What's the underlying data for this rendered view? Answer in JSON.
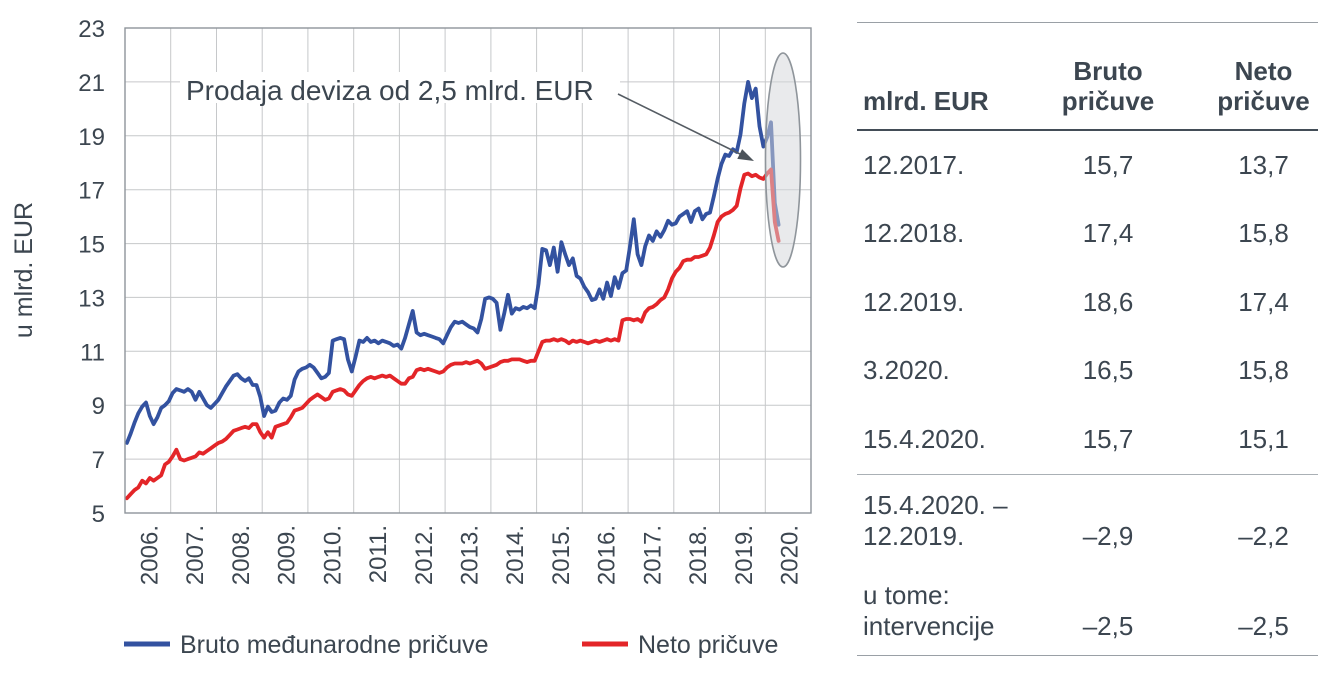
{
  "chart": {
    "ylabel": "u mlrd. EUR",
    "annotation_text": "Prodaja deviza od 2,5 mlrd. EUR"
  },
  "chart_data": {
    "type": "line",
    "title": "",
    "xlabel": "",
    "ylabel": "u mlrd. EUR",
    "ylim": [
      5,
      23
    ],
    "xlim": [
      2006,
      2021
    ],
    "grid": true,
    "legend_position": "bottom",
    "yticks": [
      5,
      7,
      9,
      11,
      13,
      15,
      17,
      19,
      21,
      23
    ],
    "xtick_labels": [
      "2006.",
      "2007.",
      "2008.",
      "2009.",
      "2010.",
      "2011.",
      "2012.",
      "2013.",
      "2014.",
      "2015.",
      "2016.",
      "2017.",
      "2018.",
      "2019.",
      "2020."
    ],
    "x_start": 2006,
    "x_interval": "monthly",
    "x_final": 2020.2917,
    "x_final_label": "15.4.2020.",
    "annotation": {
      "text": "Prodaja deviza od 2,5 mlrd. EUR",
      "points_to": "pad pričuva u ožujku i travnju 2020."
    },
    "highlight_ellipse": {
      "x_center": 2020.15,
      "y_center": 15.9,
      "note": "istaknuto razdoblje intervencija 2020."
    },
    "series": [
      {
        "name": "Bruto međunarodne pričuve",
        "color": "#3352a0",
        "values": [
          7.6,
          7.95,
          8.35,
          8.7,
          8.95,
          9.1,
          8.6,
          8.3,
          8.55,
          8.9,
          9.0,
          9.15,
          9.45,
          9.6,
          9.55,
          9.5,
          9.6,
          9.5,
          9.2,
          9.5,
          9.25,
          9.0,
          8.9,
          9.05,
          9.2,
          9.45,
          9.7,
          9.9,
          10.1,
          10.15,
          10.0,
          9.9,
          10.0,
          9.75,
          9.75,
          9.3,
          8.6,
          8.95,
          8.75,
          8.8,
          9.1,
          9.25,
          9.2,
          9.35,
          9.95,
          10.25,
          10.35,
          10.4,
          10.5,
          10.4,
          10.2,
          10.0,
          10.05,
          10.2,
          11.4,
          11.45,
          11.5,
          11.45,
          10.7,
          10.25,
          10.8,
          11.4,
          11.35,
          11.5,
          11.35,
          11.4,
          11.3,
          11.4,
          11.35,
          11.3,
          11.2,
          11.25,
          11.1,
          11.5,
          12.0,
          12.5,
          11.7,
          11.6,
          11.65,
          11.6,
          11.55,
          11.5,
          11.45,
          11.3,
          11.6,
          11.9,
          12.1,
          12.05,
          12.1,
          12.0,
          11.9,
          11.85,
          11.7,
          12.2,
          12.95,
          13.0,
          12.95,
          12.8,
          11.8,
          12.4,
          13.1,
          12.4,
          12.6,
          12.55,
          12.65,
          12.6,
          12.7,
          12.6,
          13.5,
          14.8,
          14.75,
          14.2,
          14.85,
          13.95,
          15.05,
          14.6,
          14.2,
          14.45,
          13.8,
          13.7,
          13.4,
          13.2,
          12.9,
          12.95,
          13.3,
          12.95,
          13.55,
          13.05,
          13.75,
          13.35,
          13.9,
          14.0,
          14.9,
          15.9,
          14.6,
          14.2,
          14.9,
          15.3,
          15.1,
          15.45,
          15.25,
          15.5,
          15.85,
          15.7,
          15.75,
          16.0,
          16.1,
          16.2,
          15.8,
          16.2,
          16.3,
          15.9,
          16.1,
          16.15,
          16.75,
          17.4,
          17.95,
          18.3,
          18.25,
          18.5,
          18.4,
          19.05,
          20.2,
          21.0,
          20.4,
          20.75,
          19.35,
          18.6,
          18.95,
          19.5,
          16.5,
          15.7
        ]
      },
      {
        "name": "Neto pričuve",
        "color": "#e32528",
        "values": [
          5.55,
          5.7,
          5.85,
          5.95,
          6.2,
          6.1,
          6.3,
          6.2,
          6.3,
          6.4,
          6.8,
          6.9,
          7.1,
          7.35,
          7.0,
          6.95,
          7.0,
          7.05,
          7.1,
          7.25,
          7.2,
          7.3,
          7.4,
          7.5,
          7.6,
          7.65,
          7.75,
          7.9,
          8.05,
          8.1,
          8.15,
          8.2,
          8.15,
          8.3,
          8.3,
          8.0,
          7.8,
          8.0,
          7.8,
          8.2,
          8.25,
          8.3,
          8.35,
          8.55,
          8.8,
          8.85,
          8.9,
          9.05,
          9.2,
          9.3,
          9.4,
          9.3,
          9.2,
          9.25,
          9.5,
          9.55,
          9.6,
          9.55,
          9.4,
          9.35,
          9.55,
          9.75,
          9.9,
          10.0,
          10.05,
          10.0,
          10.05,
          10.1,
          10.05,
          10.1,
          10.0,
          9.9,
          9.8,
          9.8,
          10.0,
          10.05,
          10.3,
          10.35,
          10.3,
          10.35,
          10.3,
          10.25,
          10.2,
          10.25,
          10.4,
          10.5,
          10.55,
          10.55,
          10.55,
          10.6,
          10.55,
          10.6,
          10.65,
          10.55,
          10.35,
          10.4,
          10.45,
          10.5,
          10.6,
          10.65,
          10.65,
          10.7,
          10.7,
          10.7,
          10.65,
          10.6,
          10.65,
          10.65,
          11.0,
          11.35,
          11.4,
          11.4,
          11.45,
          11.4,
          11.45,
          11.4,
          11.3,
          11.4,
          11.35,
          11.4,
          11.35,
          11.3,
          11.35,
          11.4,
          11.35,
          11.4,
          11.45,
          11.4,
          11.45,
          11.4,
          12.15,
          12.2,
          12.2,
          12.15,
          12.2,
          12.1,
          12.45,
          12.6,
          12.65,
          12.75,
          12.9,
          13.0,
          13.3,
          13.7,
          13.95,
          14.1,
          14.35,
          14.4,
          14.4,
          14.5,
          14.5,
          14.55,
          14.6,
          14.85,
          15.3,
          15.8,
          16.0,
          16.1,
          16.15,
          16.25,
          16.4,
          17.05,
          17.55,
          17.6,
          17.5,
          17.55,
          17.45,
          17.4,
          17.6,
          17.75,
          15.8,
          15.1
        ]
      }
    ]
  },
  "table": {
    "col_headers": [
      "mlrd. EUR",
      "Bruto pričuve",
      "Neto pričuve"
    ],
    "rows": [
      {
        "label": "12.2017.",
        "bruto": "15,7",
        "neto": "13,7"
      },
      {
        "label": "12.2018.",
        "bruto": "17,4",
        "neto": "15,8"
      },
      {
        "label": "12.2019.",
        "bruto": "18,6",
        "neto": "17,4"
      },
      {
        "label": "3.2020.",
        "bruto": "16,5",
        "neto": "15,8"
      },
      {
        "label": "15.4.2020.",
        "bruto": "15,7",
        "neto": "15,1"
      }
    ],
    "summary_rows": [
      {
        "label_lines": [
          "15.4.2020. –",
          "12.2019."
        ],
        "bruto": "–2,9",
        "neto": "–2,2"
      },
      {
        "label_lines": [
          "u tome:",
          "intervencije"
        ],
        "bruto": "–2,5",
        "neto": "–2,5"
      }
    ]
  }
}
